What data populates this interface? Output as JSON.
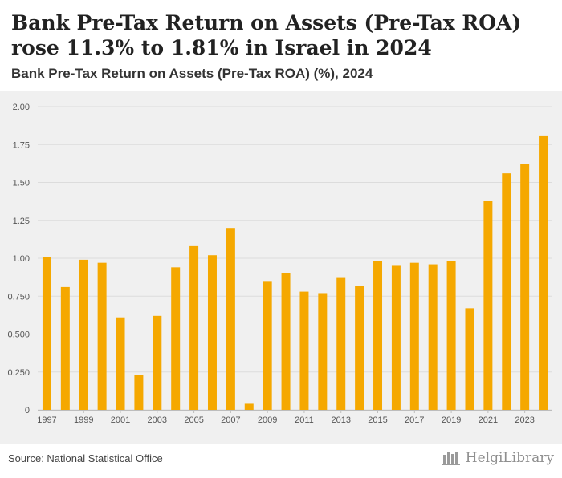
{
  "header": {
    "title": "Bank Pre-Tax Return on Assets (Pre-Tax ROA) rose 11.3% to 1.81% in Israel in 2024",
    "subtitle": "Bank Pre-Tax Return on Assets (Pre-Tax ROA) (%), 2024"
  },
  "footer": {
    "source": "Source: National Statistical Office",
    "brand": "HelgiLibrary"
  },
  "colors": {
    "bar": "#f5a800",
    "grid": "#dcdcdc",
    "plot_bg": "#f0f0f0",
    "axis_text": "#555555"
  },
  "chart_data": {
    "type": "bar",
    "title": "Bank Pre-Tax Return on Assets (Pre-Tax ROA) (%), 2024",
    "xlabel": "",
    "ylabel": "",
    "ylim": [
      0,
      2.0
    ],
    "yticks": [
      0,
      0.25,
      0.5,
      0.75,
      1.0,
      1.25,
      1.5,
      1.75,
      2.0
    ],
    "ytick_labels": [
      "0",
      "0.250",
      "0.500",
      "0.750",
      "1.00",
      "1.25",
      "1.50",
      "1.75",
      "2.00"
    ],
    "categories": [
      "1997",
      "1998",
      "1999",
      "2000",
      "2001",
      "2002",
      "2003",
      "2004",
      "2005",
      "2006",
      "2007",
      "2008",
      "2009",
      "2010",
      "2011",
      "2012",
      "2013",
      "2014",
      "2015",
      "2016",
      "2017",
      "2018",
      "2019",
      "2020",
      "2021",
      "2022",
      "2023",
      "2024"
    ],
    "xtick_labels": [
      "1997",
      "1999",
      "2001",
      "2003",
      "2005",
      "2007",
      "2009",
      "2011",
      "2013",
      "2015",
      "2017",
      "2019",
      "2021",
      "2023"
    ],
    "values": [
      1.01,
      0.81,
      0.99,
      0.97,
      0.61,
      0.23,
      0.62,
      0.94,
      1.08,
      1.02,
      1.2,
      0.04,
      0.85,
      0.9,
      0.78,
      0.77,
      0.87,
      0.82,
      0.98,
      0.95,
      0.97,
      0.96,
      0.98,
      0.67,
      1.38,
      1.56,
      1.62,
      1.81
    ],
    "grid": true,
    "legend": "none"
  }
}
